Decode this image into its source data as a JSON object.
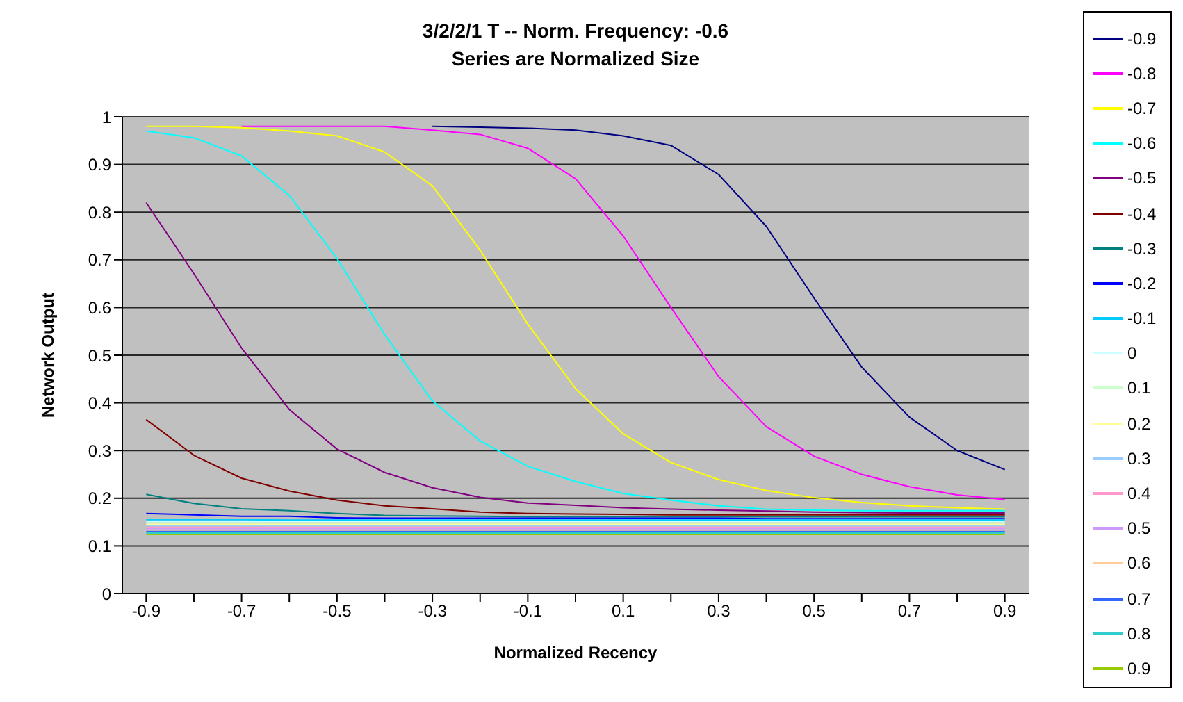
{
  "chart_data": {
    "type": "line",
    "title": "3/2/2/1 T -- Norm. Frequency: -0.6",
    "subtitle": "Series are Normalized Size",
    "xlabel": "Normalized Recency",
    "ylabel": "Network Output",
    "categories": [
      "-0.9",
      null,
      "-0.7",
      null,
      "-0.5",
      null,
      "-0.3",
      null,
      "-0.1",
      null,
      "0.1",
      null,
      "0.3",
      null,
      "0.5",
      null,
      "0.7",
      null,
      "0.9"
    ],
    "ylim": [
      0,
      1
    ],
    "yticks": [
      0,
      0.1,
      0.2,
      0.3,
      0.4,
      0.5,
      0.6,
      0.7,
      0.8,
      0.9,
      1
    ],
    "grid": "y",
    "legend": "right",
    "marker": "none",
    "line_style": "solid",
    "series": [
      {
        "name": "-0.9",
        "color": "#000080",
        "values": [
          null,
          null,
          null,
          null,
          null,
          null,
          0.98,
          0.978,
          0.976,
          0.972,
          0.96,
          0.94,
          0.879,
          0.77,
          0.62,
          0.475,
          0.37,
          0.3,
          0.26
        ]
      },
      {
        "name": "-0.8",
        "color": "#ff00ff",
        "values": [
          null,
          null,
          0.98,
          0.98,
          0.98,
          0.98,
          0.972,
          0.963,
          0.934,
          0.87,
          0.75,
          0.6,
          0.455,
          0.35,
          0.288,
          0.25,
          0.224,
          0.207,
          0.197
        ]
      },
      {
        "name": "-0.7",
        "color": "#ffff00",
        "values": [
          0.98,
          0.98,
          0.977,
          0.97,
          0.96,
          0.926,
          0.855,
          0.72,
          0.565,
          0.43,
          0.335,
          0.275,
          0.239,
          0.216,
          0.201,
          0.191,
          0.184,
          0.18,
          0.177
        ]
      },
      {
        "name": "-0.6",
        "color": "#00ffff",
        "values": [
          0.97,
          0.956,
          0.918,
          0.835,
          0.703,
          0.543,
          0.404,
          0.32,
          0.267,
          0.235,
          0.21,
          0.196,
          0.184,
          0.177,
          0.175,
          0.174,
          0.174,
          0.174,
          0.174
        ]
      },
      {
        "name": "-0.5",
        "color": "#800080",
        "values": [
          0.82,
          0.671,
          0.515,
          0.386,
          0.303,
          0.254,
          0.222,
          0.202,
          0.19,
          0.185,
          0.18,
          0.177,
          0.175,
          0.173,
          0.171,
          0.17,
          0.169,
          0.169,
          0.169
        ]
      },
      {
        "name": "-0.4",
        "color": "#800000",
        "values": [
          0.365,
          0.29,
          0.242,
          0.215,
          0.196,
          0.184,
          0.178,
          0.171,
          0.168,
          0.167,
          0.166,
          0.165,
          0.165,
          0.165,
          0.165,
          0.165,
          0.165,
          0.165,
          0.165
        ]
      },
      {
        "name": "-0.3",
        "color": "#008080",
        "values": [
          0.208,
          0.189,
          0.178,
          0.174,
          0.168,
          0.164,
          0.163,
          0.162,
          0.161,
          0.161,
          0.161,
          0.161,
          0.161,
          0.161,
          0.161,
          0.161,
          0.161,
          0.161,
          0.161
        ]
      },
      {
        "name": "-0.2",
        "color": "#0000ff",
        "values": [
          0.168,
          0.165,
          0.162,
          0.162,
          0.159,
          0.158,
          0.158,
          0.158,
          0.158,
          0.158,
          0.158,
          0.158,
          0.158,
          0.157,
          0.157,
          0.157,
          0.157,
          0.157,
          0.157
        ]
      },
      {
        "name": "-0.1",
        "color": "#00ccff",
        "values": [
          0.155,
          0.155,
          0.155,
          0.154,
          0.154,
          0.154,
          0.154,
          0.154,
          0.154,
          0.154,
          0.154,
          0.154,
          0.154,
          0.154,
          0.154,
          0.154,
          0.154,
          0.154,
          0.154
        ]
      },
      {
        "name": "0",
        "color": "#ccffff",
        "values": [
          0.151,
          0.151,
          0.151,
          0.151,
          0.151,
          0.151,
          0.151,
          0.151,
          0.151,
          0.151,
          0.151,
          0.151,
          0.151,
          0.151,
          0.151,
          0.151,
          0.151,
          0.151,
          0.151
        ]
      },
      {
        "name": "0.1",
        "color": "#ccffcc",
        "values": [
          0.148,
          0.148,
          0.148,
          0.148,
          0.148,
          0.148,
          0.148,
          0.148,
          0.148,
          0.148,
          0.148,
          0.148,
          0.148,
          0.148,
          0.148,
          0.148,
          0.148,
          0.148,
          0.148
        ]
      },
      {
        "name": "0.2",
        "color": "#ffff99",
        "values": [
          0.145,
          0.145,
          0.145,
          0.145,
          0.145,
          0.145,
          0.145,
          0.145,
          0.145,
          0.145,
          0.145,
          0.145,
          0.145,
          0.145,
          0.145,
          0.145,
          0.145,
          0.145,
          0.145
        ]
      },
      {
        "name": "0.3",
        "color": "#99ccff",
        "values": [
          0.142,
          0.142,
          0.142,
          0.142,
          0.142,
          0.142,
          0.142,
          0.142,
          0.142,
          0.142,
          0.142,
          0.142,
          0.142,
          0.142,
          0.142,
          0.142,
          0.142,
          0.142,
          0.142
        ]
      },
      {
        "name": "0.4",
        "color": "#ff99cc",
        "values": [
          0.139,
          0.139,
          0.139,
          0.139,
          0.139,
          0.139,
          0.139,
          0.139,
          0.139,
          0.139,
          0.139,
          0.139,
          0.139,
          0.139,
          0.139,
          0.139,
          0.139,
          0.139,
          0.139
        ]
      },
      {
        "name": "0.5",
        "color": "#cc99ff",
        "values": [
          0.136,
          0.136,
          0.136,
          0.136,
          0.136,
          0.136,
          0.136,
          0.136,
          0.136,
          0.136,
          0.136,
          0.136,
          0.136,
          0.136,
          0.136,
          0.136,
          0.136,
          0.136,
          0.136
        ]
      },
      {
        "name": "0.6",
        "color": "#ffcc99",
        "values": [
          0.133,
          0.133,
          0.133,
          0.133,
          0.133,
          0.133,
          0.133,
          0.133,
          0.133,
          0.133,
          0.133,
          0.133,
          0.133,
          0.133,
          0.133,
          0.133,
          0.133,
          0.133,
          0.133
        ]
      },
      {
        "name": "0.7",
        "color": "#3366ff",
        "values": [
          0.13,
          0.13,
          0.13,
          0.13,
          0.13,
          0.13,
          0.13,
          0.13,
          0.13,
          0.13,
          0.13,
          0.13,
          0.13,
          0.13,
          0.13,
          0.13,
          0.13,
          0.13,
          0.13
        ]
      },
      {
        "name": "0.8",
        "color": "#33cccc",
        "values": [
          0.127,
          0.127,
          0.127,
          0.127,
          0.127,
          0.127,
          0.127,
          0.127,
          0.127,
          0.127,
          0.127,
          0.127,
          0.127,
          0.127,
          0.127,
          0.127,
          0.127,
          0.127,
          0.127
        ]
      },
      {
        "name": "0.9",
        "color": "#99cc00",
        "values": [
          0.124,
          0.124,
          0.124,
          0.124,
          0.124,
          0.124,
          0.124,
          0.124,
          0.124,
          0.124,
          0.124,
          0.124,
          0.124,
          0.124,
          0.124,
          0.124,
          0.124,
          0.124,
          0.124
        ]
      }
    ]
  }
}
